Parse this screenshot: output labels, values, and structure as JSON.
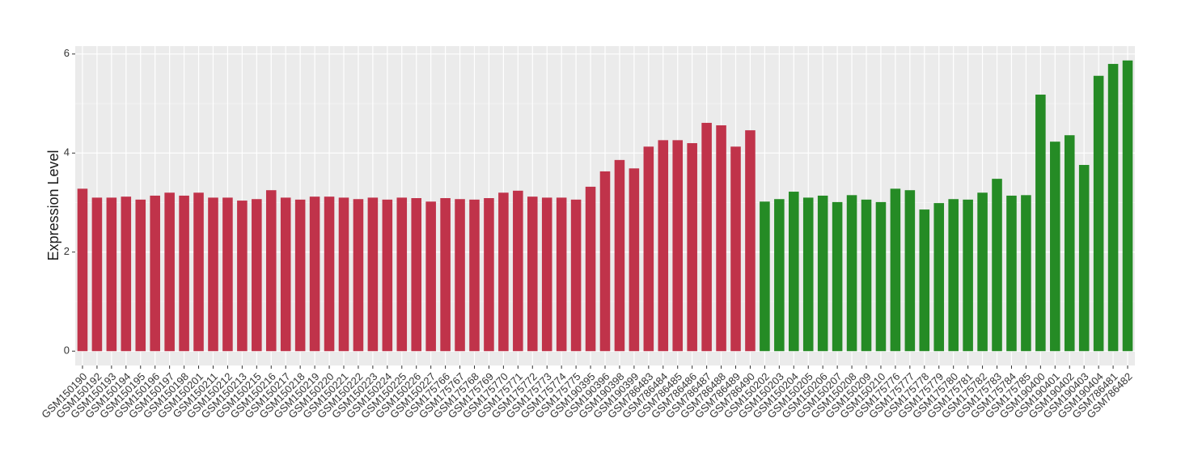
{
  "chart_data": {
    "type": "bar",
    "y_label": "Expression Level",
    "categories": [
      "GSM150190",
      "GSM150192",
      "GSM150193",
      "GSM150194",
      "GSM150195",
      "GSM150196",
      "GSM150197",
      "GSM150198",
      "GSM150201",
      "GSM150211",
      "GSM150212",
      "GSM150213",
      "GSM150215",
      "GSM150216",
      "GSM150217",
      "GSM150218",
      "GSM150219",
      "GSM150220",
      "GSM150221",
      "GSM150222",
      "GSM150223",
      "GSM150224",
      "GSM150225",
      "GSM150226",
      "GSM150227",
      "GSM175766",
      "GSM175767",
      "GSM175768",
      "GSM175769",
      "GSM175770",
      "GSM175771",
      "GSM175772",
      "GSM175773",
      "GSM175774",
      "GSM175775",
      "GSM190395",
      "GSM190396",
      "GSM190398",
      "GSM190399",
      "GSM786483",
      "GSM786484",
      "GSM786485",
      "GSM786486",
      "GSM786487",
      "GSM786488",
      "GSM786489",
      "GSM786490",
      "GSM150202",
      "GSM150203",
      "GSM150204",
      "GSM150205",
      "GSM150206",
      "GSM150207",
      "GSM150208",
      "GSM150209",
      "GSM150210",
      "GSM175776",
      "GSM175777",
      "GSM175778",
      "GSM175779",
      "GSM175780",
      "GSM175781",
      "GSM175782",
      "GSM175783",
      "GSM175784",
      "GSM175785",
      "GSM190400",
      "GSM190401",
      "GSM190402",
      "GSM190403",
      "GSM190404",
      "GSM786481",
      "GSM786482"
    ],
    "values": [
      3.28,
      3.1,
      3.1,
      3.12,
      3.06,
      3.14,
      3.2,
      3.14,
      3.2,
      3.1,
      3.1,
      3.04,
      3.07,
      3.25,
      3.1,
      3.06,
      3.12,
      3.12,
      3.1,
      3.07,
      3.1,
      3.06,
      3.1,
      3.09,
      3.02,
      3.09,
      3.07,
      3.06,
      3.09,
      3.2,
      3.24,
      3.12,
      3.1,
      3.1,
      3.06,
      3.32,
      3.63,
      3.86,
      3.69,
      4.13,
      4.26,
      4.26,
      4.2,
      4.61,
      4.56,
      4.13,
      4.46,
      3.02,
      3.07,
      3.22,
      3.1,
      3.14,
      3.01,
      3.15,
      3.06,
      3.01,
      3.28,
      3.25,
      2.86,
      2.99,
      3.07,
      3.06,
      3.2,
      3.48,
      3.14,
      3.15,
      5.18,
      4.23,
      4.36,
      3.76,
      5.56,
      5.8,
      5.87
    ],
    "colors": [
      "#c0334a",
      "#c0334a",
      "#c0334a",
      "#c0334a",
      "#c0334a",
      "#c0334a",
      "#c0334a",
      "#c0334a",
      "#c0334a",
      "#c0334a",
      "#c0334a",
      "#c0334a",
      "#c0334a",
      "#c0334a",
      "#c0334a",
      "#c0334a",
      "#c0334a",
      "#c0334a",
      "#c0334a",
      "#c0334a",
      "#c0334a",
      "#c0334a",
      "#c0334a",
      "#c0334a",
      "#c0334a",
      "#c0334a",
      "#c0334a",
      "#c0334a",
      "#c0334a",
      "#c0334a",
      "#c0334a",
      "#c0334a",
      "#c0334a",
      "#c0334a",
      "#c0334a",
      "#c0334a",
      "#c0334a",
      "#c0334a",
      "#c0334a",
      "#c0334a",
      "#c0334a",
      "#c0334a",
      "#c0334a",
      "#c0334a",
      "#c0334a",
      "#c0334a",
      "#c0334a",
      "#258b25",
      "#258b25",
      "#258b25",
      "#258b25",
      "#258b25",
      "#258b25",
      "#258b25",
      "#258b25",
      "#258b25",
      "#258b25",
      "#258b25",
      "#258b25",
      "#258b25",
      "#258b25",
      "#258b25",
      "#258b25",
      "#258b25",
      "#258b25",
      "#258b25",
      "#258b25",
      "#258b25",
      "#258b25",
      "#258b25",
      "#258b25",
      "#258b25",
      "#258b25"
    ],
    "ylim": [
      -0.29,
      6.16
    ],
    "yticks": [
      0,
      2,
      4,
      6
    ],
    "grid": true
  }
}
